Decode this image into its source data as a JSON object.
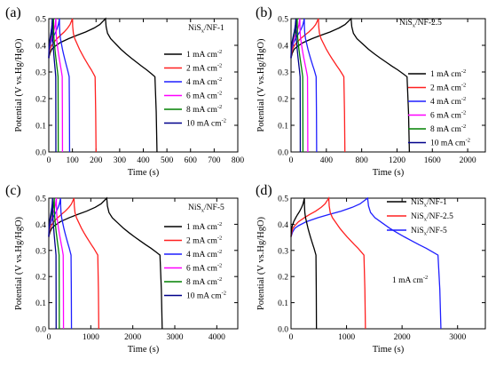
{
  "chart_data": [
    {
      "type": "line",
      "panel_label": "(a)",
      "material_label": [
        "NiS",
        "x",
        "/NF-1"
      ],
      "xlabel": "Time (s)",
      "ylabel": "Potential (V vs.Hg/HgO)",
      "xlim": [
        0,
        800
      ],
      "ylim": [
        0.0,
        0.5
      ],
      "xticks": [
        0,
        100,
        200,
        300,
        400,
        500,
        600,
        700,
        800
      ],
      "yticks": [
        0.0,
        0.1,
        0.2,
        0.3,
        0.4,
        0.5
      ],
      "legend_position": "right",
      "series": [
        {
          "name": "1 mA cm-2",
          "label_parts": [
            "1 mA cm",
            "-2"
          ],
          "color": "#000000",
          "charge_end": 240,
          "discharge_end": 458
        },
        {
          "name": "2 mA cm-2",
          "label_parts": [
            "2 mA cm",
            "-2"
          ],
          "color": "#ff2020",
          "charge_end": 100,
          "discharge_end": 200
        },
        {
          "name": "4 mA cm-2",
          "label_parts": [
            "4 mA cm",
            "-2"
          ],
          "color": "#1f1fff",
          "charge_end": 45,
          "discharge_end": 88
        },
        {
          "name": "6 mA cm-2",
          "label_parts": [
            "6 mA cm",
            "-2"
          ],
          "color": "#ff00ff",
          "charge_end": 30,
          "discharge_end": 58
        },
        {
          "name": "8 mA cm-2",
          "label_parts": [
            "8 mA cm",
            "-2"
          ],
          "color": "#008000",
          "charge_end": 20,
          "discharge_end": 40
        },
        {
          "name": "10 mA cm-2",
          "label_parts": [
            "10 mA cm",
            "-2"
          ],
          "color": "#00008b",
          "charge_end": 15,
          "discharge_end": 30
        }
      ]
    },
    {
      "type": "line",
      "panel_label": "(b)",
      "material_label": [
        "NiS",
        "x",
        "/NF-2.5"
      ],
      "xlabel": "Time (s)",
      "ylabel": "Potential (V vs.Hg/HgO)",
      "xlim": [
        0,
        2200
      ],
      "ylim": [
        0.0,
        0.5
      ],
      "xticks": [
        0,
        400,
        800,
        1200,
        1600,
        2000
      ],
      "yticks": [
        0.0,
        0.1,
        0.2,
        0.3,
        0.4,
        0.5
      ],
      "legend_position": "right",
      "series": [
        {
          "name": "1 mA cm-2",
          "label_parts": [
            "1 mA cm",
            "-2"
          ],
          "color": "#000000",
          "charge_end": 680,
          "discharge_end": 1340
        },
        {
          "name": "2 mA cm-2",
          "label_parts": [
            "2 mA cm",
            "-2"
          ],
          "color": "#ff2020",
          "charge_end": 310,
          "discharge_end": 610
        },
        {
          "name": "4 mA cm-2",
          "label_parts": [
            "4 mA cm",
            "-2"
          ],
          "color": "#1f1fff",
          "charge_end": 150,
          "discharge_end": 290
        },
        {
          "name": "6 mA cm-2",
          "label_parts": [
            "6 mA cm",
            "-2"
          ],
          "color": "#ff00ff",
          "charge_end": 100,
          "discharge_end": 190
        },
        {
          "name": "8 mA cm-2",
          "label_parts": [
            "8 mA cm",
            "-2"
          ],
          "color": "#008000",
          "charge_end": 70,
          "discharge_end": 135
        },
        {
          "name": "10 mA cm-2",
          "label_parts": [
            "10 mA cm",
            "-2"
          ],
          "color": "#00008b",
          "charge_end": 55,
          "discharge_end": 105
        }
      ]
    },
    {
      "type": "line",
      "panel_label": "(c)",
      "material_label": [
        "NiS",
        "x",
        "/NF-5"
      ],
      "xlabel": "Time (s)",
      "ylabel": "Potential (V vs.Hg/HgO)",
      "xlim": [
        0,
        4500
      ],
      "ylim": [
        0.0,
        0.5
      ],
      "xticks": [
        0,
        1000,
        2000,
        3000,
        4000
      ],
      "yticks": [
        0.0,
        0.1,
        0.2,
        0.3,
        0.4,
        0.5
      ],
      "legend_position": "right",
      "series": [
        {
          "name": "1 mA cm-2",
          "label_parts": [
            "1 mA cm",
            "-2"
          ],
          "color": "#000000",
          "charge_end": 1380,
          "discharge_end": 2700
        },
        {
          "name": "2 mA cm-2",
          "label_parts": [
            "2 mA cm",
            "-2"
          ],
          "color": "#ff2020",
          "charge_end": 600,
          "discharge_end": 1190
        },
        {
          "name": "4 mA cm-2",
          "label_parts": [
            "4 mA cm",
            "-2"
          ],
          "color": "#1f1fff",
          "charge_end": 280,
          "discharge_end": 540
        },
        {
          "name": "6 mA cm-2",
          "label_parts": [
            "6 mA cm",
            "-2"
          ],
          "color": "#ff00ff",
          "charge_end": 180,
          "discharge_end": 350
        },
        {
          "name": "8 mA cm-2",
          "label_parts": [
            "8 mA cm",
            "-2"
          ],
          "color": "#008000",
          "charge_end": 130,
          "discharge_end": 250
        },
        {
          "name": "10 mA cm-2",
          "label_parts": [
            "10 mA cm",
            "-2"
          ],
          "color": "#00008b",
          "charge_end": 90,
          "discharge_end": 175
        }
      ]
    },
    {
      "type": "line",
      "panel_label": "(d)",
      "annotation": [
        "1 mA cm",
        "-2"
      ],
      "xlabel": "Time (s)",
      "ylabel": "Potential (V vs.Hg/HgO)",
      "xlim": [
        0,
        3500
      ],
      "ylim": [
        0.0,
        0.5
      ],
      "xticks": [
        0,
        1000,
        2000,
        3000
      ],
      "yticks": [
        0.0,
        0.1,
        0.2,
        0.3,
        0.4,
        0.5
      ],
      "legend_position": "top-right",
      "series": [
        {
          "name": "NiSx/NF-1",
          "label_parts": [
            "NiS",
            "x",
            "/NF-1"
          ],
          "color": "#000000",
          "charge_end": 240,
          "discharge_end": 458
        },
        {
          "name": "NiSx/NF-2.5",
          "label_parts": [
            "NiS",
            "x",
            "/NF-2.5"
          ],
          "color": "#ff2020",
          "charge_end": 680,
          "discharge_end": 1340
        },
        {
          "name": "NiSx/NF-5",
          "label_parts": [
            "NiS",
            "x",
            "/NF-5"
          ],
          "color": "#1f1fff",
          "charge_end": 1380,
          "discharge_end": 2700
        }
      ]
    }
  ]
}
